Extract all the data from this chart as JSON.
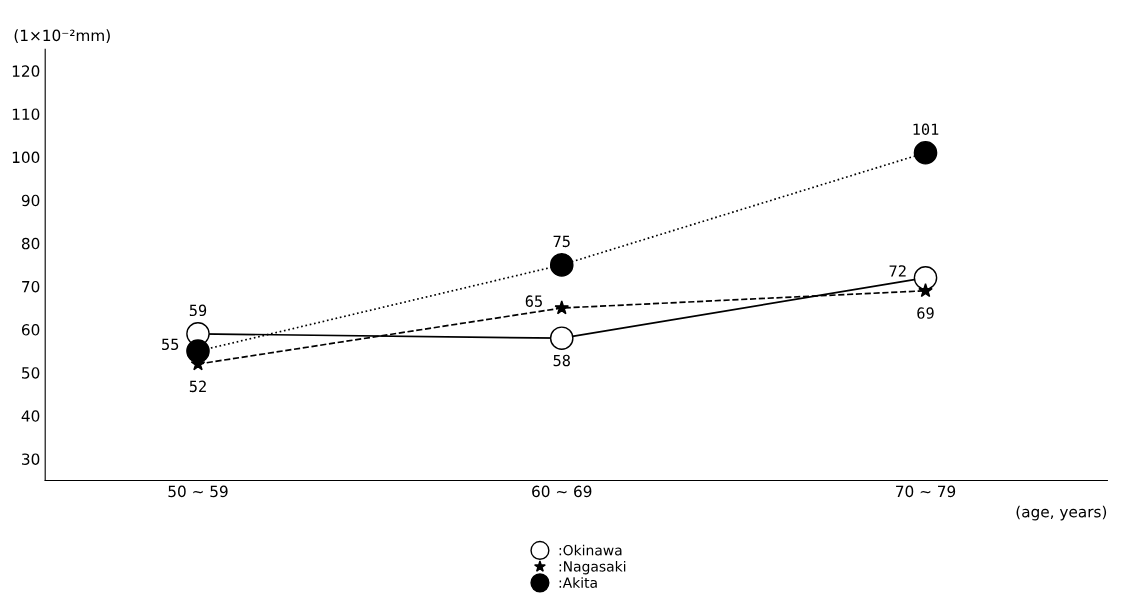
{
  "chart_data": {
    "type": "line",
    "ylabel": "(1×10⁻²mm)",
    "xlabel": "(age, years)",
    "categories": [
      "50 ~ 59",
      "60 ~ 69",
      "70 ~ 79"
    ],
    "series": [
      {
        "name": ":Okinawa",
        "color": "#ffffff",
        "marker": "circle",
        "line_style": "solid",
        "values": [
          59,
          58,
          72
        ]
      },
      {
        "name": ":Nagasaki",
        "color": "#000000",
        "marker": "star",
        "line_style": "dashed",
        "values": [
          52,
          65,
          69
        ]
      },
      {
        "name": ":Akita",
        "color": "#000000",
        "marker": "circle",
        "line_style": "dotted",
        "values": [
          55,
          75,
          101
        ]
      }
    ],
    "ylim": [
      25,
      125
    ],
    "yticks": [
      30,
      40,
      50,
      60,
      70,
      80,
      90,
      100,
      110,
      120
    ],
    "data_labels": true,
    "grid": false,
    "legend": "bottom"
  }
}
